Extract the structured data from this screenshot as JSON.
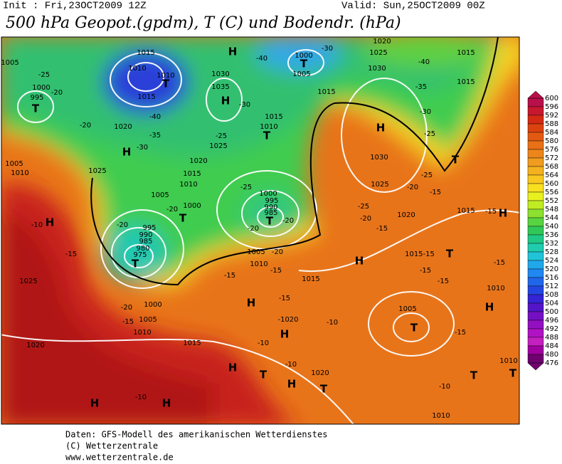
{
  "header": {
    "init": "Init : Fri,23OCT2009 12Z",
    "valid": "Valid: Sun,25OCT2009 00Z",
    "title": "500 hPa Geopot.(gpdm), T (C) und Bodendr. (hPa)"
  },
  "colorbar": {
    "labels": [
      600,
      596,
      592,
      588,
      584,
      580,
      576,
      572,
      568,
      564,
      560,
      556,
      552,
      548,
      544,
      540,
      536,
      532,
      528,
      524,
      520,
      516,
      512,
      508,
      504,
      500,
      496,
      492,
      488,
      484,
      480,
      476
    ],
    "colors": [
      "#b8104a",
      "#c81830",
      "#d42a14",
      "#dc4210",
      "#e25a12",
      "#e87016",
      "#ec861a",
      "#f09c1e",
      "#f4b220",
      "#f8c820",
      "#f8e020",
      "#e8f020",
      "#c0ec24",
      "#8ce030",
      "#58d440",
      "#30c858",
      "#20c886",
      "#20ccb0",
      "#20c4d8",
      "#20a8ea",
      "#2088f0",
      "#2066ea",
      "#2446e0",
      "#3424d4",
      "#5414c8",
      "#7410c2",
      "#9210c2",
      "#b012c4",
      "#c420c0",
      "#a000a0",
      "#700070"
    ]
  },
  "map": {
    "labels": [
      "H",
      "1015",
      "1005",
      "-25",
      "1010",
      "1010",
      "T",
      "1000",
      "T",
      "1005",
      "-30",
      "-40",
      "1030",
      "1035",
      "H",
      "-30",
      "1015",
      "1000",
      "995",
      "T",
      "-20",
      "1015",
      "-40",
      "1020",
      "-35",
      "-20",
      "H",
      "-30",
      "1015",
      "1010",
      "T",
      "-25",
      "1025",
      "1020",
      "1015",
      "1010",
      "-25",
      "1005",
      "1000",
      "-20",
      "T",
      "1000",
      "995",
      "990",
      "985",
      "T",
      "-20",
      "-20",
      "995",
      "990",
      "985",
      "980",
      "975",
      "T",
      "-20",
      "1005",
      "-20",
      "1010",
      "-15",
      "1015",
      "1025",
      "1005",
      "1010",
      "-10",
      "H",
      "-15",
      "1025",
      "H",
      "1030",
      "1025",
      "1020",
      "-40",
      "-35",
      "-30",
      "-25",
      "1015",
      "1015",
      "T",
      "1030",
      "-25",
      "-20",
      "-15",
      "1025",
      "-25",
      "-20",
      "1020",
      "-15",
      "1015",
      "-15",
      "H",
      "1015-15",
      "T",
      "H",
      "-15",
      "-15",
      "-15",
      "1010",
      "H",
      "1005",
      "T",
      "-15",
      "H",
      "-15",
      "-1020",
      "H",
      "-10",
      "1015",
      "1010",
      "1005",
      "1000",
      "-20",
      "-15",
      "1020",
      "-10",
      "H",
      "T",
      "-10",
      "1020",
      "H",
      "T",
      "T",
      "1010",
      "T",
      "-10",
      "1010",
      "-10",
      "H",
      "H",
      "-15"
    ]
  },
  "footer": {
    "line1": "Daten: GFS-Modell des amerikanischen Wetterdienstes",
    "line2": "(C) Wetterzentrale",
    "line3": "www.wetterzentrale.de"
  }
}
